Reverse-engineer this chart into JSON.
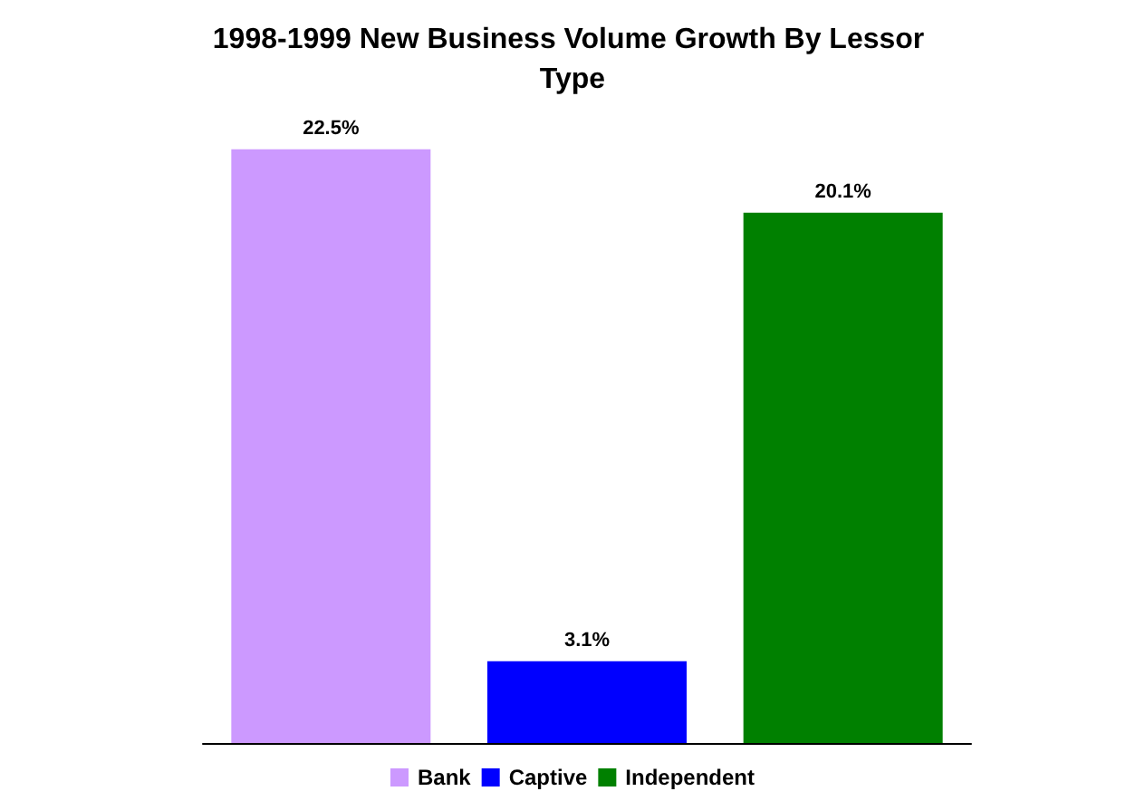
{
  "chart_data": {
    "type": "bar",
    "title": "1998-1999 New Business Volume Growth By Lessor Type",
    "categories": [
      null,
      null,
      null
    ],
    "series": [
      {
        "name": "Bank",
        "color": "#cc99ff",
        "values": [
          22.5,
          null,
          null
        ],
        "value_labels": [
          "22.5%",
          null,
          null
        ]
      },
      {
        "name": "Captive",
        "color": "#0000ff",
        "values": [
          null,
          3.1,
          null
        ],
        "value_labels": [
          null,
          "3.1%",
          null
        ]
      },
      {
        "name": "Independent",
        "color": "#008000",
        "values": [
          null,
          null,
          20.1
        ],
        "value_labels": [
          null,
          null,
          "20.1%"
        ]
      }
    ],
    "stacked": true,
    "legend": "bottom",
    "grid": false
  }
}
